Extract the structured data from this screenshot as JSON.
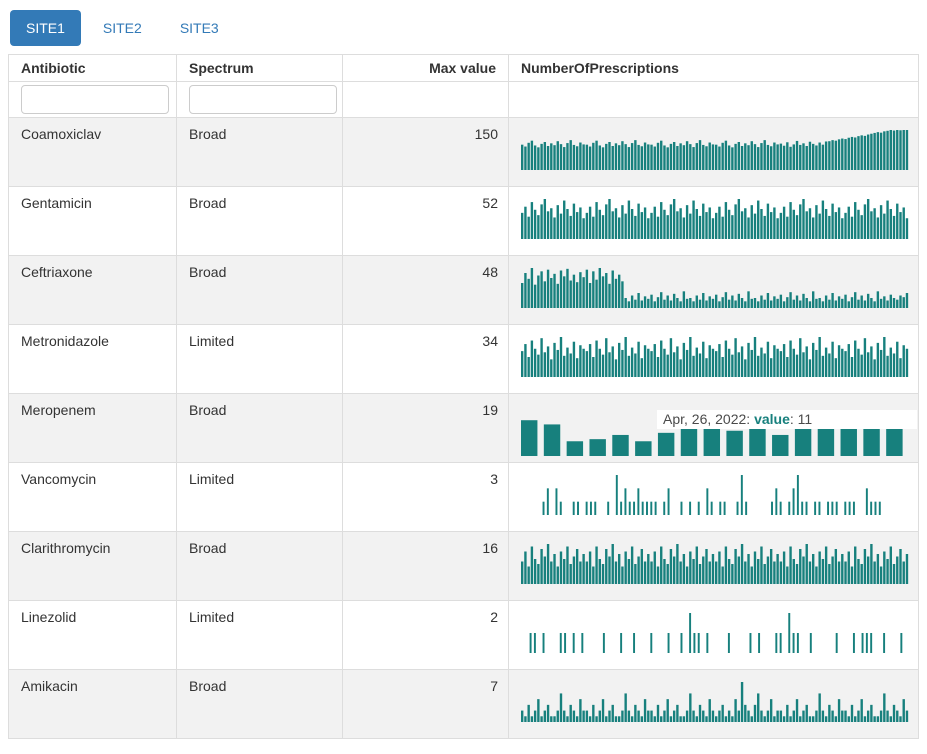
{
  "tabs": [
    {
      "label": "SITE1",
      "active": true
    },
    {
      "label": "SITE2",
      "active": false
    },
    {
      "label": "SITE3",
      "active": false
    }
  ],
  "colors": {
    "accent": "#17807d",
    "tab_active_bg": "#337ab7",
    "tab_link": "#337ab7",
    "row_stripe": "#f2f2f2",
    "border": "#dddddd",
    "tooltip_text": "#4a4a4a"
  },
  "table": {
    "columns": [
      "Antibiotic",
      "Spectrum",
      "Max value",
      "NumberOfPrescriptions"
    ],
    "filters": {
      "antibiotic_value": "",
      "spectrum_value": "",
      "antibiotic_placeholder": "",
      "spectrum_placeholder": ""
    },
    "rows": [
      {
        "antibiotic": "Coamoxiclav",
        "spectrum": "Broad",
        "max_value": "150",
        "sparkline": {
          "type": "bar",
          "ymax": 150,
          "values": [
            95,
            88,
            102,
            110,
            92,
            85,
            98,
            105,
            90,
            100,
            93,
            108,
            97,
            86,
            101,
            112,
            94,
            89,
            103,
            96,
            95,
            88,
            102,
            110,
            92,
            85,
            98,
            105,
            90,
            100,
            93,
            108,
            97,
            86,
            101,
            112,
            94,
            89,
            103,
            96,
            95,
            88,
            102,
            110,
            92,
            85,
            98,
            105,
            90,
            100,
            93,
            108,
            97,
            86,
            101,
            112,
            94,
            89,
            103,
            96,
            95,
            88,
            102,
            110,
            92,
            85,
            98,
            105,
            90,
            100,
            93,
            108,
            97,
            86,
            101,
            112,
            94,
            89,
            103,
            96,
            99,
            91,
            104,
            87,
            96,
            109,
            94,
            100,
            90,
            106,
            98,
            92,
            103,
            95,
            107,
            108,
            112,
            110,
            115,
            118,
            116,
            121,
            124,
            122,
            127,
            130,
            128,
            133,
            136,
            139,
            142,
            140,
            145,
            147,
            150,
            148,
            150,
            149,
            150,
            150
          ]
        }
      },
      {
        "antibiotic": "Gentamicin",
        "spectrum": "Broad",
        "max_value": "52",
        "sparkline": {
          "type": "bar",
          "ymax": 52,
          "values": [
            34,
            42,
            29,
            48,
            38,
            31,
            45,
            52,
            36,
            40,
            28,
            44,
            33,
            50,
            39,
            30,
            46,
            35,
            41,
            27,
            34,
            42,
            29,
            48,
            38,
            31,
            45,
            52,
            36,
            40,
            28,
            44,
            33,
            50,
            39,
            30,
            46,
            35,
            41,
            27,
            34,
            42,
            29,
            48,
            38,
            31,
            45,
            52,
            36,
            40,
            28,
            44,
            33,
            50,
            39,
            30,
            46,
            35,
            41,
            27,
            34,
            42,
            29,
            48,
            38,
            31,
            45,
            52,
            36,
            40,
            28,
            44,
            33,
            50,
            39,
            30,
            46,
            35,
            41,
            27,
            34,
            42,
            29,
            48,
            38,
            31,
            45,
            52,
            36,
            40,
            28,
            44,
            33,
            50,
            39,
            30,
            46,
            35,
            41,
            27,
            34,
            42,
            29,
            48,
            38,
            31,
            45,
            52,
            36,
            40,
            28,
            44,
            33,
            50,
            39,
            30,
            46,
            35,
            41,
            27
          ]
        }
      },
      {
        "antibiotic": "Ceftriaxone",
        "spectrum": "Broad",
        "max_value": "48",
        "sparkline": {
          "type": "bar",
          "ymax": 48,
          "values": [
            30,
            42,
            35,
            48,
            28,
            39,
            44,
            32,
            46,
            36,
            41,
            29,
            45,
            38,
            47,
            33,
            40,
            31,
            43,
            37,
            46,
            30,
            44,
            34,
            48,
            38,
            42,
            29,
            45,
            35,
            40,
            32,
            12,
            8,
            15,
            10,
            18,
            9,
            14,
            11,
            16,
            8,
            13,
            19,
            10,
            15,
            9,
            17,
            12,
            8,
            20,
            11,
            12,
            8,
            15,
            10,
            18,
            9,
            14,
            11,
            16,
            8,
            13,
            19,
            10,
            15,
            9,
            17,
            12,
            8,
            20,
            11,
            12,
            8,
            15,
            10,
            18,
            9,
            14,
            11,
            16,
            8,
            13,
            19,
            10,
            15,
            9,
            17,
            12,
            8,
            20,
            11,
            12,
            8,
            15,
            10,
            18,
            9,
            14,
            11,
            16,
            8,
            13,
            19,
            10,
            15,
            9,
            17,
            12,
            8,
            20,
            11,
            14,
            9,
            16,
            12,
            10,
            15,
            13,
            18
          ]
        }
      },
      {
        "antibiotic": "Metronidazole",
        "spectrum": "Limited",
        "max_value": "34",
        "sparkline": {
          "type": "bar",
          "ymax": 34,
          "values": [
            22,
            28,
            17,
            31,
            24,
            19,
            33,
            21,
            26,
            15,
            29,
            23,
            34,
            18,
            25,
            20,
            30,
            16,
            27,
            24,
            22,
            28,
            17,
            31,
            24,
            19,
            33,
            21,
            26,
            15,
            29,
            23,
            34,
            18,
            25,
            20,
            30,
            16,
            27,
            24,
            22,
            28,
            17,
            31,
            24,
            19,
            33,
            21,
            26,
            15,
            29,
            23,
            34,
            18,
            25,
            20,
            30,
            16,
            27,
            24,
            22,
            28,
            17,
            31,
            24,
            19,
            33,
            21,
            26,
            15,
            29,
            23,
            34,
            18,
            25,
            20,
            30,
            16,
            27,
            24,
            22,
            28,
            17,
            31,
            24,
            19,
            33,
            21,
            26,
            15,
            29,
            23,
            34,
            18,
            25,
            20,
            30,
            16,
            27,
            24,
            22,
            28,
            17,
            31,
            24,
            19,
            33,
            21,
            26,
            15,
            29,
            23,
            34,
            18,
            25,
            20,
            30,
            16,
            27,
            24
          ]
        }
      },
      {
        "antibiotic": "Meropenem",
        "spectrum": "Broad",
        "max_value": "19",
        "sparkline": {
          "type": "bar",
          "ymax": 19,
          "values": [
            17,
            15,
            7,
            8,
            10,
            7,
            11,
            16,
            16,
            12,
            17,
            10,
            16,
            14,
            19,
            17,
            18
          ],
          "highlight_index": 6
        },
        "tooltip": {
          "date_text": "Apr, 26, 2022: ",
          "label": "value",
          "value_text": ": 11"
        }
      },
      {
        "antibiotic": "Vancomycin",
        "spectrum": "Limited",
        "max_value": "3",
        "sparkline": {
          "type": "bar",
          "ymax": 3,
          "values": [
            0,
            0,
            0,
            0,
            0,
            1,
            2,
            0,
            2,
            1,
            0,
            0,
            1,
            1,
            0,
            1,
            1,
            1,
            0,
            0,
            1,
            0,
            3,
            1,
            2,
            1,
            1,
            2,
            1,
            1,
            1,
            1,
            0,
            1,
            2,
            0,
            0,
            1,
            0,
            1,
            0,
            1,
            0,
            2,
            1,
            0,
            1,
            1,
            0,
            0,
            1,
            3,
            1,
            0,
            0,
            0,
            0,
            0,
            1,
            2,
            1,
            0,
            1,
            2,
            3,
            1,
            1,
            0,
            1,
            1,
            0,
            1,
            1,
            1,
            0,
            1,
            1,
            1,
            0,
            0,
            2,
            1,
            1,
            1,
            0,
            0,
            0,
            0,
            0,
            0
          ]
        }
      },
      {
        "antibiotic": "Clarithromycin",
        "spectrum": "Broad",
        "max_value": "16",
        "sparkline": {
          "type": "bar",
          "ymax": 16,
          "values": [
            9,
            13,
            7,
            15,
            10,
            8,
            14,
            11,
            16,
            9,
            12,
            7,
            13,
            10,
            15,
            8,
            11,
            14,
            9,
            12,
            9,
            13,
            7,
            15,
            10,
            8,
            14,
            11,
            16,
            9,
            12,
            7,
            13,
            10,
            15,
            8,
            11,
            14,
            9,
            12,
            9,
            13,
            7,
            15,
            10,
            8,
            14,
            11,
            16,
            9,
            12,
            7,
            13,
            10,
            15,
            8,
            11,
            14,
            9,
            12,
            9,
            13,
            7,
            15,
            10,
            8,
            14,
            11,
            16,
            9,
            12,
            7,
            13,
            10,
            15,
            8,
            11,
            14,
            9,
            12,
            9,
            13,
            7,
            15,
            10,
            8,
            14,
            11,
            16,
            9,
            12,
            7,
            13,
            10,
            15,
            8,
            11,
            14,
            9,
            12,
            9,
            13,
            7,
            15,
            10,
            8,
            14,
            11,
            16,
            9,
            12,
            7,
            13,
            10,
            15,
            8,
            11,
            14,
            9,
            12
          ]
        }
      },
      {
        "antibiotic": "Linezolid",
        "spectrum": "Limited",
        "max_value": "2",
        "sparkline": {
          "type": "bar",
          "ymax": 2,
          "values": [
            0,
            0,
            1,
            1,
            0,
            1,
            0,
            0,
            0,
            1,
            1,
            0,
            1,
            0,
            1,
            0,
            0,
            0,
            0,
            1,
            0,
            0,
            0,
            1,
            0,
            0,
            1,
            0,
            0,
            0,
            1,
            0,
            0,
            0,
            1,
            0,
            0,
            1,
            0,
            2,
            1,
            1,
            0,
            1,
            0,
            0,
            0,
            0,
            1,
            0,
            0,
            0,
            0,
            1,
            0,
            1,
            0,
            0,
            0,
            1,
            1,
            0,
            2,
            1,
            1,
            0,
            0,
            1,
            0,
            0,
            0,
            0,
            0,
            1,
            0,
            0,
            0,
            1,
            0,
            1,
            1,
            1,
            0,
            0,
            1,
            0,
            0,
            0,
            1,
            0
          ]
        }
      },
      {
        "antibiotic": "Amikacin",
        "spectrum": "Broad",
        "max_value": "7",
        "sparkline": {
          "type": "bar",
          "ymax": 7,
          "values": [
            2,
            1,
            3,
            1,
            2,
            4,
            1,
            2,
            3,
            1,
            1,
            2,
            5,
            2,
            1,
            3,
            2,
            1,
            4,
            2,
            2,
            1,
            3,
            1,
            2,
            4,
            1,
            2,
            3,
            1,
            1,
            2,
            5,
            2,
            1,
            3,
            2,
            1,
            4,
            2,
            2,
            1,
            3,
            1,
            2,
            4,
            1,
            2,
            3,
            1,
            1,
            2,
            5,
            2,
            1,
            3,
            2,
            1,
            4,
            2,
            1,
            2,
            3,
            1,
            2,
            1,
            4,
            2,
            7,
            3,
            2,
            1,
            3,
            5,
            2,
            1,
            2,
            4,
            1,
            2,
            2,
            1,
            3,
            1,
            2,
            4,
            1,
            2,
            3,
            1,
            1,
            2,
            5,
            2,
            1,
            3,
            2,
            1,
            4,
            2,
            2,
            1,
            3,
            1,
            2,
            4,
            1,
            2,
            3,
            1,
            1,
            2,
            5,
            2,
            1,
            3,
            2,
            1,
            4,
            2
          ]
        }
      }
    ]
  }
}
